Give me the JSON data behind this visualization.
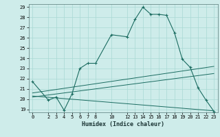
{
  "xlabel": "Humidex (Indice chaleur)",
  "background_color": "#ceecea",
  "grid_color": "#a8d8d4",
  "line_color": "#1a6b60",
  "xlim": [
    -0.5,
    23.5
  ],
  "ylim": [
    18.7,
    29.3
  ],
  "yticks": [
    19,
    20,
    21,
    22,
    23,
    24,
    25,
    26,
    27,
    28,
    29
  ],
  "xticks": [
    0,
    2,
    3,
    4,
    5,
    6,
    7,
    8,
    10,
    12,
    13,
    14,
    15,
    16,
    17,
    18,
    19,
    20,
    21,
    22,
    23
  ],
  "line1_x": [
    0,
    2,
    3,
    4,
    5,
    6,
    7,
    8,
    10,
    12,
    13,
    14,
    15,
    16,
    17,
    18,
    19,
    20,
    21,
    22,
    23
  ],
  "line1_y": [
    21.7,
    19.9,
    20.2,
    18.9,
    20.5,
    23.0,
    23.5,
    23.5,
    26.3,
    26.1,
    27.8,
    29.0,
    28.3,
    28.3,
    28.2,
    26.5,
    23.9,
    23.1,
    21.1,
    19.9,
    18.8
  ],
  "line2_x": [
    0,
    23
  ],
  "line2_y": [
    20.2,
    22.5
  ],
  "line3_x": [
    0,
    23
  ],
  "line3_y": [
    20.6,
    23.2
  ],
  "line4_x": [
    0,
    23
  ],
  "line4_y": [
    20.3,
    18.85
  ]
}
